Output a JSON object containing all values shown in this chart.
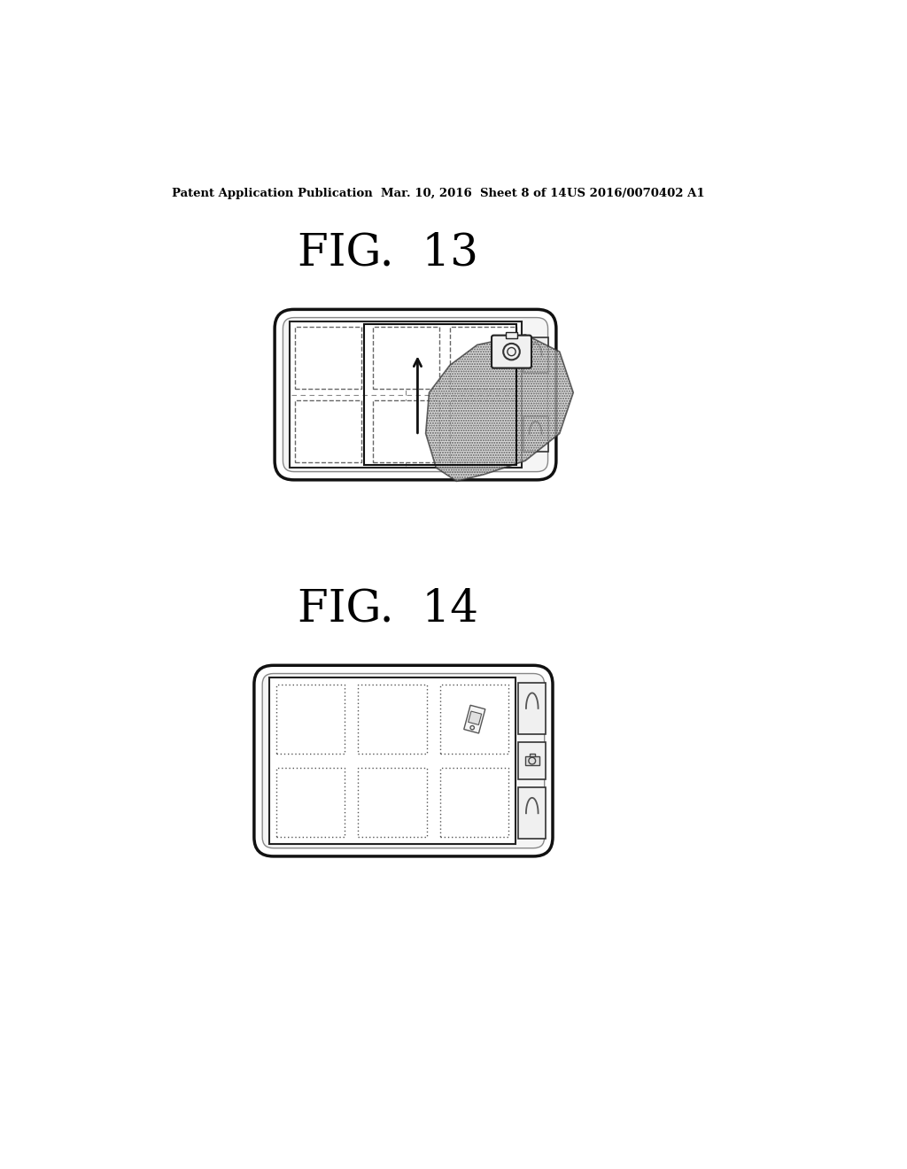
{
  "bg_color": "#ffffff",
  "header_left": "Patent Application Publication",
  "header_mid": "Mar. 10, 2016  Sheet 8 of 14",
  "header_right": "US 2016/0070402 A1",
  "fig13_title": "FIG.  13",
  "fig14_title": "FIG.  14",
  "text_color": "#000000"
}
